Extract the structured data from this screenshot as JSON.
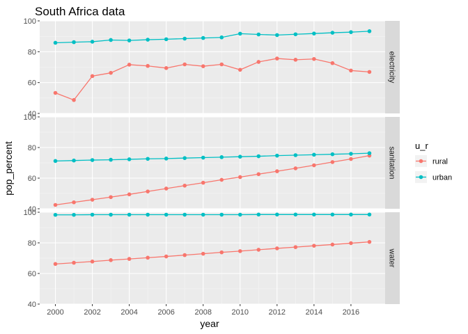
{
  "chart_data": {
    "type": "line",
    "title": "South Africa data",
    "xlabel": "year",
    "ylabel": "pop_percent",
    "x": [
      2000,
      2001,
      2002,
      2003,
      2004,
      2005,
      2006,
      2007,
      2008,
      2009,
      2010,
      2011,
      2012,
      2013,
      2014,
      2015,
      2016,
      2017
    ],
    "xlim": [
      1999.15,
      2017.85
    ],
    "ylim": [
      40,
      100
    ],
    "x_ticks": [
      "2000",
      "2002",
      "2004",
      "2006",
      "2008",
      "2010",
      "2012",
      "2014",
      "2016"
    ],
    "y_ticks": [
      "40",
      "60",
      "80",
      "100"
    ],
    "grid": true,
    "legend": {
      "title": "u_r",
      "position": "right",
      "entries": [
        {
          "name": "rural",
          "color": "#F8766D"
        },
        {
          "name": "urban",
          "color": "#00BFC4"
        }
      ]
    },
    "facets": [
      {
        "label": "electricity",
        "series": [
          {
            "name": "rural",
            "color": "#F8766D",
            "values": [
              53.3,
              48.7,
              64.2,
              66.3,
              71.6,
              70.8,
              69.4,
              71.8,
              70.6,
              71.8,
              68.3,
              73.4,
              75.6,
              74.8,
              75.3,
              72.6,
              67.8,
              66.9
            ]
          },
          {
            "name": "urban",
            "color": "#00BFC4",
            "values": [
              85.8,
              86.2,
              86.5,
              87.6,
              87.3,
              87.8,
              88.1,
              88.5,
              88.9,
              89.3,
              91.7,
              91.2,
              90.8,
              91.3,
              91.8,
              92.3,
              92.7,
              93.3
            ]
          }
        ]
      },
      {
        "label": "sanitation",
        "series": [
          {
            "name": "rural",
            "color": "#F8766D",
            "values": [
              42.5,
              44.2,
              45.9,
              47.6,
              49.4,
              51.3,
              53.2,
              55.1,
              57.0,
              58.9,
              60.7,
              62.6,
              64.5,
              66.4,
              68.4,
              70.5,
              72.5,
              74.7
            ]
          },
          {
            "name": "urban",
            "color": "#00BFC4",
            "values": [
              71.2,
              71.5,
              71.8,
              72.0,
              72.3,
              72.6,
              72.8,
              73.1,
              73.4,
              73.7,
              74.0,
              74.3,
              74.7,
              75.0,
              75.3,
              75.6,
              75.9,
              76.3
            ]
          }
        ]
      },
      {
        "label": "water",
        "series": [
          {
            "name": "rural",
            "color": "#F8766D",
            "values": [
              66.2,
              67.0,
              67.8,
              68.7,
              69.5,
              70.3,
              71.1,
              72.0,
              72.9,
              73.8,
              74.6,
              75.5,
              76.4,
              77.2,
              78.1,
              78.9,
              79.8,
              80.6
            ]
          },
          {
            "name": "urban",
            "color": "#00BFC4",
            "values": [
              98.3,
              98.3,
              98.4,
              98.4,
              98.4,
              98.4,
              98.4,
              98.4,
              98.4,
              98.4,
              98.4,
              98.5,
              98.5,
              98.5,
              98.5,
              98.5,
              98.5,
              98.5
            ]
          }
        ]
      }
    ]
  }
}
